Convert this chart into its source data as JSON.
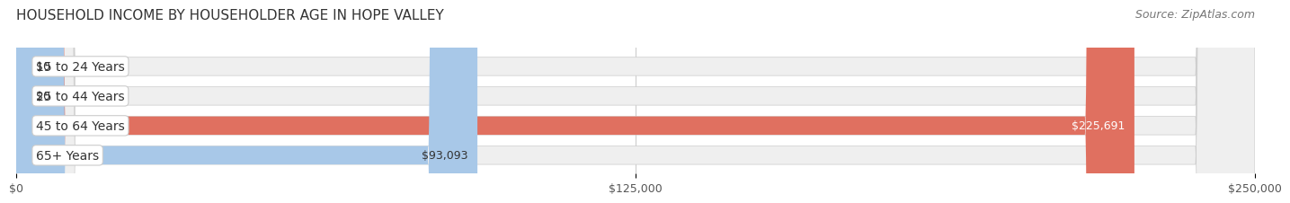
{
  "title": "HOUSEHOLD INCOME BY HOUSEHOLDER AGE IN HOPE VALLEY",
  "source": "Source: ZipAtlas.com",
  "categories": [
    "15 to 24 Years",
    "25 to 44 Years",
    "45 to 64 Years",
    "65+ Years"
  ],
  "values": [
    0,
    0,
    225691,
    93093
  ],
  "bar_colors": [
    "#f08080",
    "#f5c6a0",
    "#e07060",
    "#a8c8e8"
  ],
  "bar_bg_color": "#efefef",
  "label_colors": [
    "#333333",
    "#333333",
    "#ffffff",
    "#333333"
  ],
  "value_labels": [
    "$0",
    "$0",
    "$225,691",
    "$93,093"
  ],
  "xlim": [
    0,
    250000
  ],
  "xtick_labels": [
    "$0",
    "$125,000",
    "$250,000"
  ],
  "title_fontsize": 11,
  "source_fontsize": 9,
  "label_fontsize": 10,
  "value_fontsize": 9,
  "tick_fontsize": 9,
  "background_color": "#ffffff"
}
